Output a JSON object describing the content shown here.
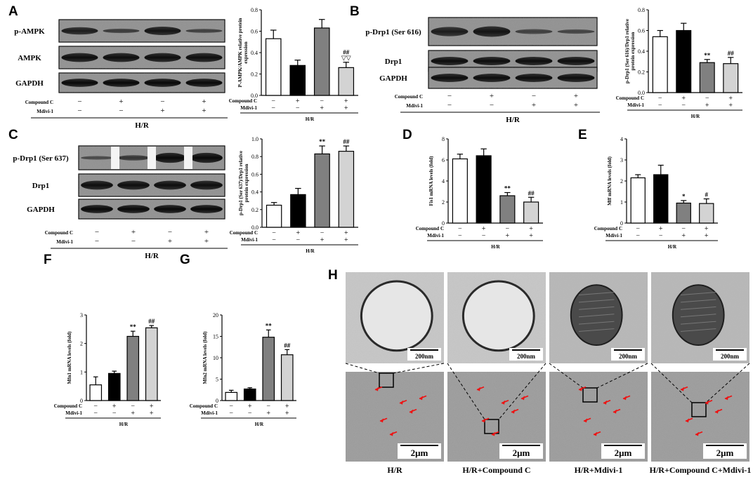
{
  "panels": {
    "A": "A",
    "B": "B",
    "C": "C",
    "D": "D",
    "E": "E",
    "F": "F",
    "G": "G",
    "H": "H"
  },
  "blots": {
    "A": {
      "labels": [
        "p-AMPK",
        "AMPK",
        "GAPDH"
      ]
    },
    "B": {
      "labels": [
        "p-Drp1 (Ser 616)",
        "Drp1",
        "GAPDH"
      ]
    },
    "C": {
      "labels": [
        "p-Drp1 (Ser 637)",
        "Drp1",
        "GAPDH"
      ]
    }
  },
  "design": {
    "rows": [
      "Compound C",
      "Mdivi-1"
    ],
    "compound_c": [
      "−",
      "+",
      "−",
      "+"
    ],
    "mdivi": [
      "−",
      "−",
      "+",
      "+"
    ],
    "group": "H/R"
  },
  "colors": {
    "g1": "#ffffff",
    "g2": "#000000",
    "g3": "#808080",
    "g4": "#d3d3d3"
  },
  "chart_data": [
    {
      "id": "A",
      "type": "bar",
      "ylabel": "P-AMPK/AMPK relative protein expression",
      "ylim": [
        0,
        0.8
      ],
      "ticks": [
        "0.0",
        "0.2",
        "0.4",
        "0.6",
        "0.8"
      ],
      "values": [
        0.53,
        0.28,
        0.63,
        0.26
      ],
      "errors": [
        0.08,
        0.05,
        0.08,
        0.05
      ],
      "sig": [
        "",
        "",
        "",
        "##\n▽▽"
      ]
    },
    {
      "id": "B",
      "type": "bar",
      "ylabel": "p-Drp1 (Ser 616)/Drp1 relative protein expression",
      "ylim": [
        0,
        0.8
      ],
      "ticks": [
        "0.0",
        "0.2",
        "0.4",
        "0.6",
        "0.8"
      ],
      "values": [
        0.54,
        0.6,
        0.29,
        0.28
      ],
      "errors": [
        0.06,
        0.07,
        0.03,
        0.06
      ],
      "sig": [
        "",
        "",
        "**",
        "##"
      ]
    },
    {
      "id": "C",
      "type": "bar",
      "ylabel": "p-Drp1 (Ser 637)/Drp1 relative protein expression",
      "ylim": [
        0,
        1.0
      ],
      "ticks": [
        "0.0",
        "0.2",
        "0.4",
        "0.6",
        "0.8",
        "1.0"
      ],
      "values": [
        0.25,
        0.37,
        0.83,
        0.86
      ],
      "errors": [
        0.03,
        0.07,
        0.09,
        0.06
      ],
      "sig": [
        "",
        "",
        "**",
        "##"
      ]
    },
    {
      "id": "D",
      "type": "bar",
      "ylabel": "Fis1 mRNA levels (fold)",
      "ylim": [
        0,
        8
      ],
      "ticks": [
        "0",
        "2",
        "4",
        "6",
        "8"
      ],
      "values": [
        6.1,
        6.4,
        2.6,
        2.0
      ],
      "errors": [
        0.45,
        0.65,
        0.3,
        0.45
      ],
      "sig": [
        "",
        "",
        "**",
        "##"
      ]
    },
    {
      "id": "E",
      "type": "bar",
      "ylabel": "Mff mRNA levels (fold)",
      "ylim": [
        0,
        4
      ],
      "ticks": [
        "0",
        "1",
        "2",
        "3",
        "4"
      ],
      "values": [
        2.15,
        2.3,
        0.95,
        0.93
      ],
      "errors": [
        0.15,
        0.45,
        0.12,
        0.22
      ],
      "sig": [
        "",
        "",
        "*",
        "#"
      ]
    },
    {
      "id": "F",
      "type": "bar",
      "ylabel": "Mfn1 mRNA levels (fold)",
      "ylim": [
        0,
        3
      ],
      "ticks": [
        "0",
        "1",
        "2",
        "3"
      ],
      "values": [
        0.55,
        0.95,
        2.25,
        2.55
      ],
      "errors": [
        0.28,
        0.08,
        0.18,
        0.08
      ],
      "sig": [
        "",
        "",
        "**",
        "##"
      ]
    },
    {
      "id": "G",
      "type": "bar",
      "ylabel": "Mfn2 mRNA levels (fold)",
      "ylim": [
        0,
        20
      ],
      "ticks": [
        "0",
        "5",
        "10",
        "15",
        "20"
      ],
      "values": [
        1.9,
        2.7,
        14.8,
        10.7
      ],
      "errors": [
        0.5,
        0.3,
        1.7,
        1.2
      ],
      "sig": [
        "",
        "",
        "**",
        "##"
      ]
    }
  ],
  "tem": {
    "scale_top": "200nm",
    "scale_bottom": "2μm",
    "captions": [
      "H/R",
      "H/R+Compound C",
      "H/R+Mdivi-1",
      "H/R+Compound C+Mdivi-1"
    ]
  }
}
